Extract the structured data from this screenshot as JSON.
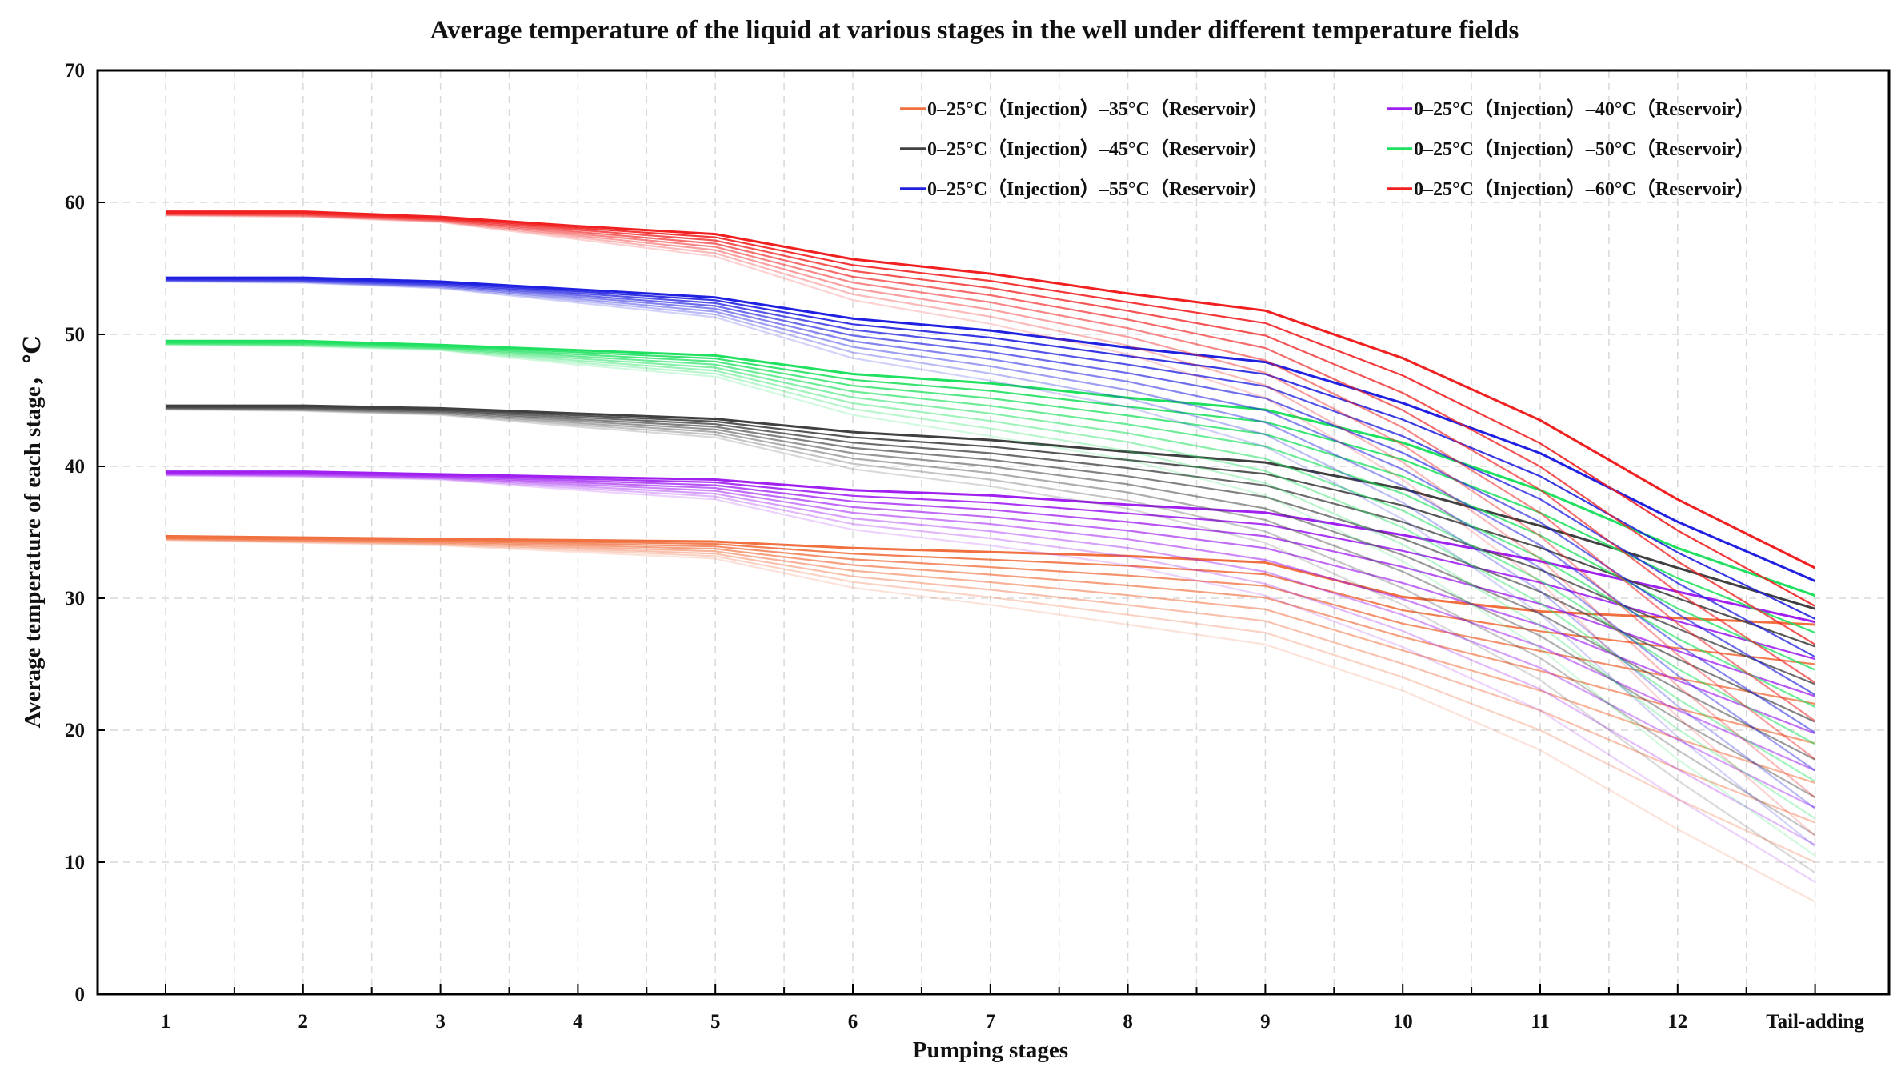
{
  "chart_data": {
    "type": "line",
    "title": "Average temperature of the liquid at various stages in the well under different temperature fields",
    "xlabel": "Pumping stages",
    "ylabel": "Average temperature of each stage，℃",
    "categories": [
      "1",
      "2",
      "3",
      "4",
      "5",
      "6",
      "7",
      "8",
      "9",
      "10",
      "11",
      "12",
      "Tail-adding"
    ],
    "ylim": [
      0,
      70
    ],
    "yticks": [
      0,
      10,
      20,
      30,
      40,
      50,
      60,
      70
    ],
    "grid": true,
    "legend_position": "top-right",
    "lines_per_group": 8,
    "series": [
      {
        "name": "0–25°C（Injection）–35°C（Reservoir）",
        "color": "#f07040",
        "top_values": [
          34.7,
          34.6,
          34.5,
          34.4,
          34.3,
          33.8,
          33.5,
          33.2,
          32.7,
          30.1,
          29.0,
          28.5,
          28.0
        ],
        "bottom_values": [
          34.4,
          34.2,
          34.0,
          33.5,
          33.0,
          30.8,
          29.5,
          28.0,
          26.5,
          23.0,
          18.5,
          12.5,
          7.0
        ]
      },
      {
        "name": "0–25°C（Injection）–40°C（Reservoir）",
        "color": "#a020f0",
        "top_values": [
          39.6,
          39.6,
          39.4,
          39.2,
          39.0,
          38.2,
          37.8,
          37.1,
          36.5,
          34.8,
          32.8,
          30.5,
          28.2
        ],
        "bottom_values": [
          39.3,
          39.2,
          39.0,
          38.2,
          37.5,
          35.2,
          34.0,
          32.5,
          30.2,
          26.3,
          21.5,
          14.8,
          8.5
        ]
      },
      {
        "name": "0–25°C（Injection）–45°C（Reservoir）",
        "color": "#404040",
        "top_values": [
          44.6,
          44.6,
          44.4,
          44.0,
          43.6,
          42.6,
          42.0,
          41.1,
          40.3,
          38.3,
          35.5,
          32.3,
          29.2
        ],
        "bottom_values": [
          44.3,
          44.2,
          43.9,
          43.0,
          42.2,
          39.8,
          38.5,
          36.8,
          34.2,
          29.5,
          23.8,
          16.2,
          9.2
        ]
      },
      {
        "name": "0–25°C（Injection）–50°C（Reservoir）",
        "color": "#20e060",
        "top_values": [
          49.5,
          49.5,
          49.2,
          48.8,
          48.4,
          47.0,
          46.3,
          45.2,
          44.3,
          41.8,
          38.2,
          33.8,
          30.2
        ],
        "bottom_values": [
          49.2,
          49.1,
          48.8,
          47.7,
          46.8,
          43.9,
          42.3,
          40.5,
          37.8,
          32.8,
          26.2,
          17.8,
          10.5
        ]
      },
      {
        "name": "0–25°C（Injection）–55°C（Reservoir）",
        "color": "#2020e0",
        "top_values": [
          54.3,
          54.3,
          54.0,
          53.4,
          52.8,
          51.2,
          50.3,
          49.0,
          47.9,
          44.8,
          41.0,
          35.8,
          31.3
        ],
        "bottom_values": [
          54.0,
          53.9,
          53.5,
          52.4,
          51.3,
          48.2,
          46.5,
          44.5,
          41.5,
          36.0,
          28.8,
          19.5,
          11.2
        ]
      },
      {
        "name": "0–25°C（Injection）–60°C（Reservoir）",
        "color": "#f02020",
        "top_values": [
          59.3,
          59.3,
          58.9,
          58.2,
          57.6,
          55.7,
          54.6,
          53.1,
          51.8,
          48.2,
          43.5,
          37.5,
          32.3
        ],
        "bottom_values": [
          59.0,
          58.9,
          58.5,
          57.2,
          55.9,
          52.6,
          50.8,
          48.5,
          45.2,
          39.0,
          31.2,
          21.0,
          12.0
        ]
      }
    ]
  }
}
